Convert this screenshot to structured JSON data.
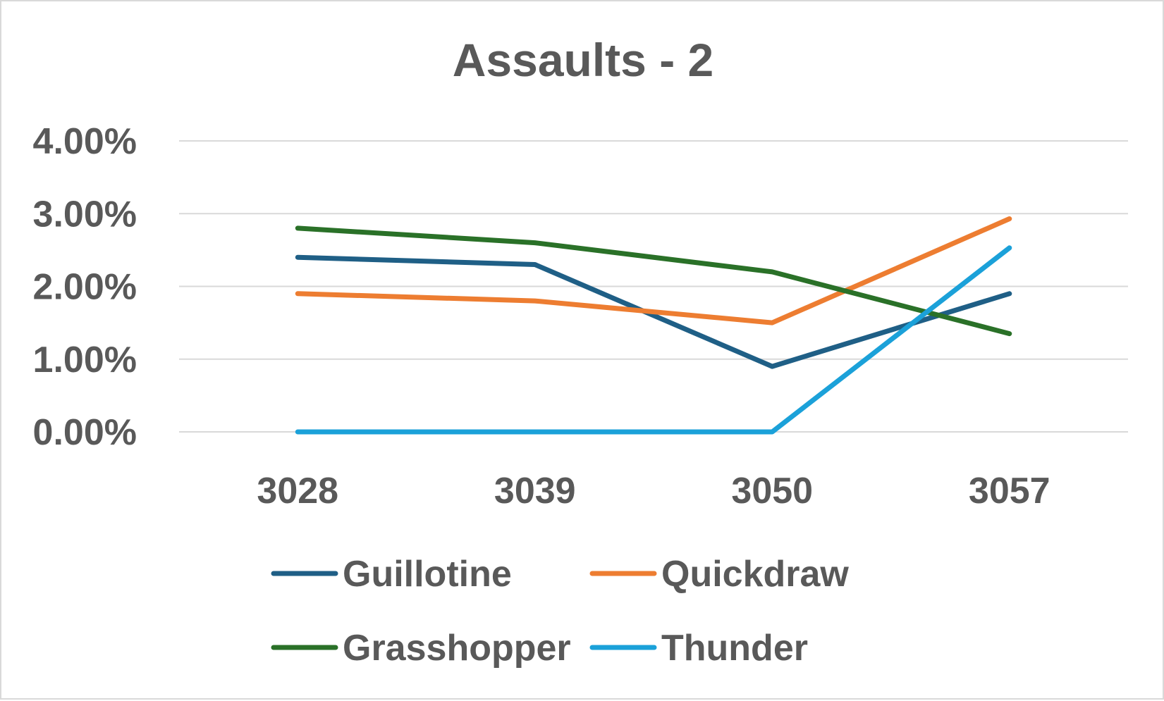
{
  "chart_data": {
    "type": "line",
    "title": "Assaults - 2",
    "xlabel": "",
    "ylabel": "",
    "categories": [
      "3028",
      "3039",
      "3050",
      "3057"
    ],
    "ylim": [
      0,
      0.04
    ],
    "yticks": [
      0,
      0.01,
      0.02,
      0.03,
      0.04
    ],
    "ytick_labels": [
      "0.00%",
      "1.00%",
      "2.00%",
      "3.00%",
      "4.00%"
    ],
    "grid": true,
    "legend_position": "bottom",
    "series": [
      {
        "name": "Guillotine",
        "color": "#1f5f86",
        "values": [
          0.024,
          0.023,
          0.009,
          0.019
        ]
      },
      {
        "name": "Quickdraw",
        "color": "#ed7d31",
        "values": [
          0.019,
          0.018,
          0.015,
          0.0293
        ]
      },
      {
        "name": "Grasshopper",
        "color": "#2a7128",
        "values": [
          0.028,
          0.026,
          0.022,
          0.0135
        ]
      },
      {
        "name": "Thunder",
        "color": "#1ba1d9",
        "values": [
          0.0,
          0.0,
          0.0,
          0.0253
        ]
      }
    ]
  }
}
